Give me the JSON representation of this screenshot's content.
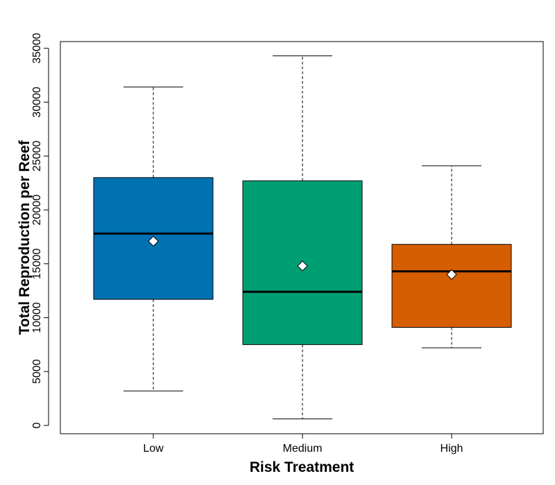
{
  "chart_data": {
    "type": "boxplot",
    "title": "",
    "xlabel": "Risk Treatment",
    "ylabel": "Total Reproduction per Reef",
    "ylim": [
      0,
      35000
    ],
    "yticks": [
      0,
      5000,
      10000,
      15000,
      20000,
      25000,
      30000,
      35000
    ],
    "ytick_labels": [
      "0",
      "5000",
      "10000",
      "15000",
      "20000",
      "25000",
      "30000",
      "35000"
    ],
    "categories": [
      "Low",
      "Medium",
      "High"
    ],
    "grid": false,
    "legend": "none",
    "boxes": [
      {
        "category": "Low",
        "min": 3200,
        "q1": 11700,
        "median": 17800,
        "q3": 23000,
        "max": 31400,
        "mean": 17100,
        "color": "#0072B2"
      },
      {
        "category": "Medium",
        "min": 600,
        "q1": 7500,
        "median": 12400,
        "q3": 22700,
        "max": 34300,
        "mean": 14800,
        "color": "#009E73"
      },
      {
        "category": "High",
        "min": 7200,
        "q1": 9100,
        "median": 14300,
        "q3": 16800,
        "max": 24100,
        "mean": 14000,
        "color": "#D55E00"
      }
    ]
  }
}
